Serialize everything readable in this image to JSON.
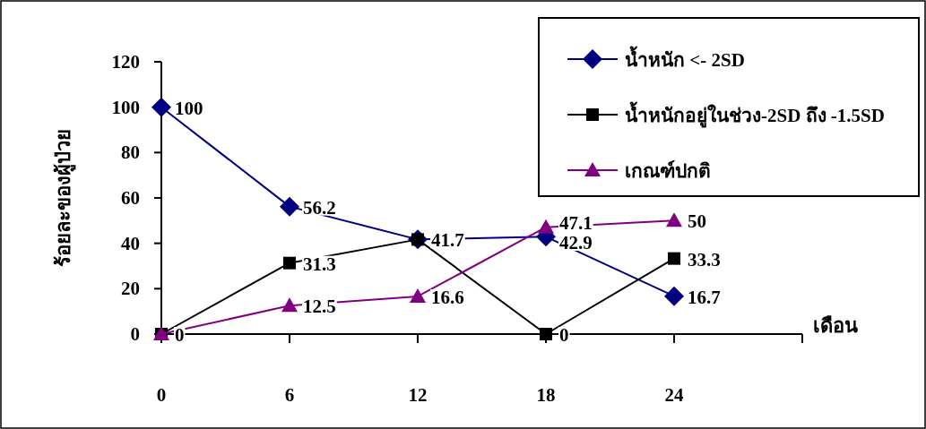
{
  "chart_data": {
    "type": "line",
    "ylabel": "ร้อยละของผู้ป่วย",
    "xlabel": "เดือน",
    "categories": [
      "0",
      "6",
      "12",
      "18",
      "24"
    ],
    "ylim": [
      0,
      120
    ],
    "yticks": [
      0,
      20,
      40,
      60,
      80,
      100,
      120
    ],
    "grid": false,
    "legend": "top right",
    "series": [
      {
        "name": "น้ำหนัก <- 2SD",
        "color": "#000080",
        "marker": "diamond",
        "values": [
          100,
          56.2,
          41.7,
          42.9,
          16.7
        ],
        "value_labels": [
          "100",
          "56.2",
          null,
          "42.9",
          "16.7"
        ]
      },
      {
        "name": "น้ำหนักอยู่ในช่วง-2SD ถึง -1.5SD",
        "color": "#000000",
        "marker": "square",
        "values": [
          0,
          31.3,
          41.7,
          0,
          33.3
        ],
        "value_labels": [
          "0",
          "31.3",
          "41.7",
          "0",
          "33.3"
        ]
      },
      {
        "name": "เกณฑ์ปกติ",
        "color": "#800080",
        "marker": "triangle",
        "values": [
          0,
          12.5,
          16.6,
          47.1,
          50
        ],
        "value_labels": [
          null,
          "12.5",
          "16.6",
          "47.1",
          "50"
        ]
      }
    ]
  }
}
